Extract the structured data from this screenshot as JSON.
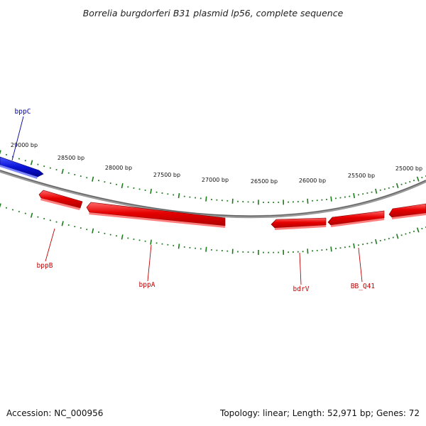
{
  "title": "Borrelia burgdorferi B31 plasmid lp56, complete sequence",
  "accession_label": "Accession: NC_000956",
  "summary_label": "Topology: linear; Length: 52,971 bp; Genes: 72",
  "colors": {
    "backbone": "#808080",
    "ticks": "#1e7a1e",
    "forward_gene": "#0a14d8",
    "reverse_gene": "#e60000",
    "forward_label": "#0000a0",
    "reverse_label": "#c00000"
  },
  "scale_labels": [
    "29000 bp",
    "28500 bp",
    "28000 bp",
    "27500 bp",
    "27000 bp",
    "26500 bp",
    "26000 bp",
    "25500 bp",
    "25000 bp"
  ],
  "genes": [
    {
      "name": "bppC",
      "strand": "forward"
    },
    {
      "name": "bppB",
      "strand": "reverse"
    },
    {
      "name": "bppA",
      "strand": "reverse"
    },
    {
      "name": "bdrV",
      "strand": "reverse"
    },
    {
      "name": "BB_Q41",
      "strand": "reverse"
    }
  ]
}
